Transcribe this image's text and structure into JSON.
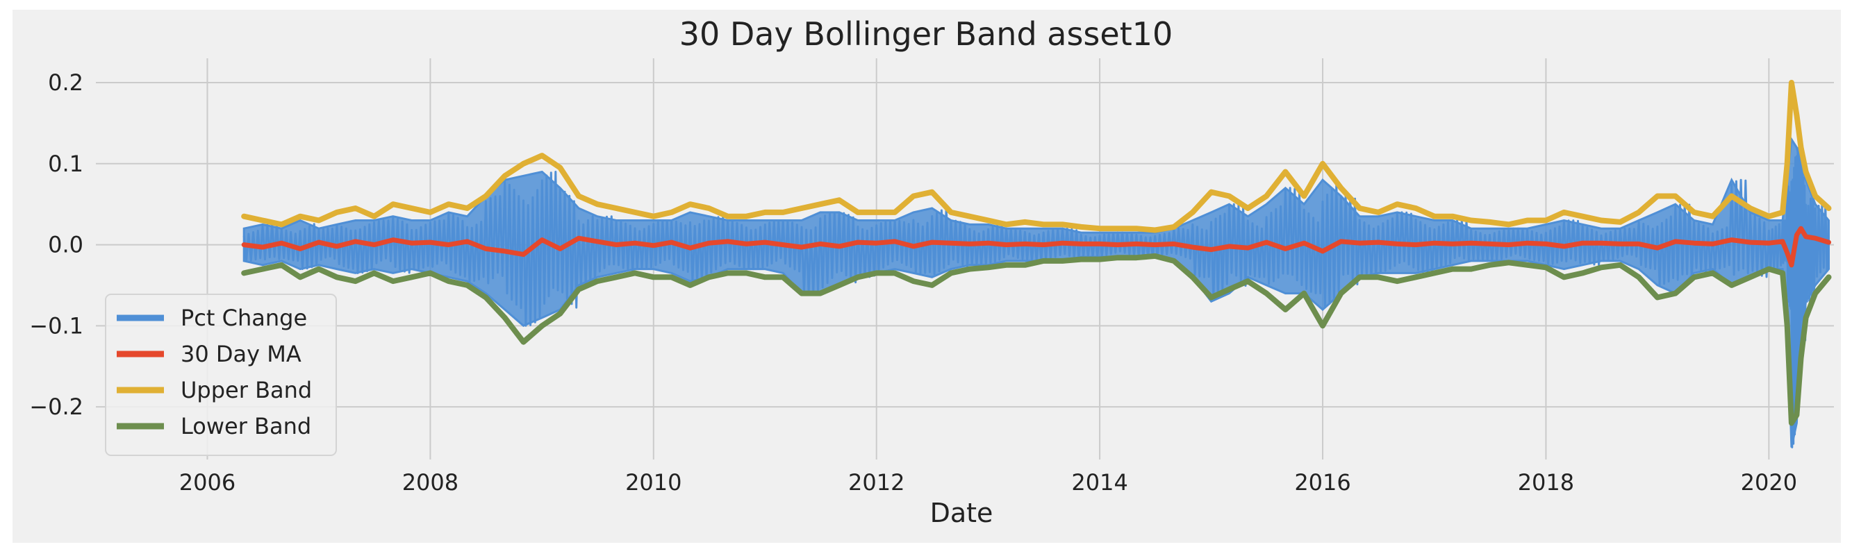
{
  "chart_data": {
    "type": "line",
    "title": "30 Day Bollinger Band asset10",
    "xlabel": "Date",
    "ylabel": "",
    "x_range": [
      "2005-01-01",
      "2020-08-01"
    ],
    "ylim": [
      -0.265,
      0.23
    ],
    "x_ticks": [
      {
        "date": "2006-01-01",
        "label": "2006"
      },
      {
        "date": "2008-01-01",
        "label": "2008"
      },
      {
        "date": "2010-01-01",
        "label": "2010"
      },
      {
        "date": "2012-01-01",
        "label": "2012"
      },
      {
        "date": "2014-01-01",
        "label": "2014"
      },
      {
        "date": "2016-01-01",
        "label": "2016"
      },
      {
        "date": "2018-01-01",
        "label": "2018"
      },
      {
        "date": "2020-01-01",
        "label": "2020"
      }
    ],
    "y_ticks": [
      {
        "value": 0.2,
        "label": "0.2"
      },
      {
        "value": 0.1,
        "label": "0.1"
      },
      {
        "value": 0.0,
        "label": "0.0"
      },
      {
        "value": -0.1,
        "label": "−0.1"
      },
      {
        "value": -0.2,
        "label": "−0.2"
      }
    ],
    "grid": true,
    "legend_position": "lower-left",
    "colors": {
      "background": "#f0f0f0",
      "grid": "#cbcbcb",
      "text": "#222222"
    },
    "series": [
      {
        "name": "Pct Change",
        "color": "#4f8fd6",
        "line_width": 7,
        "x": [
          "2006-05-01",
          "2006-07-01",
          "2006-09-01",
          "2006-11-01",
          "2007-01-01",
          "2007-03-01",
          "2007-05-01",
          "2007-07-01",
          "2007-09-01",
          "2007-11-01",
          "2008-01-01",
          "2008-03-01",
          "2008-05-01",
          "2008-07-01",
          "2008-09-01",
          "2008-11-01",
          "2009-01-01",
          "2009-03-01",
          "2009-05-01",
          "2009-07-01",
          "2009-09-01",
          "2009-11-01",
          "2010-01-01",
          "2010-03-01",
          "2010-05-01",
          "2010-07-01",
          "2010-09-01",
          "2010-11-01",
          "2011-01-01",
          "2011-03-01",
          "2011-05-01",
          "2011-07-01",
          "2011-09-01",
          "2011-11-01",
          "2012-01-01",
          "2012-03-01",
          "2012-05-01",
          "2012-07-01",
          "2012-09-01",
          "2012-11-01",
          "2013-01-01",
          "2013-03-01",
          "2013-05-01",
          "2013-07-01",
          "2013-09-01",
          "2013-11-01",
          "2014-01-01",
          "2014-03-01",
          "2014-05-01",
          "2014-07-01",
          "2014-09-01",
          "2014-11-01",
          "2015-01-01",
          "2015-03-01",
          "2015-05-01",
          "2015-07-01",
          "2015-09-01",
          "2015-11-01",
          "2016-01-01",
          "2016-03-01",
          "2016-05-01",
          "2016-07-01",
          "2016-09-01",
          "2016-11-01",
          "2017-01-01",
          "2017-03-01",
          "2017-05-01",
          "2017-07-01",
          "2017-09-01",
          "2017-11-01",
          "2018-01-01",
          "2018-03-01",
          "2018-05-01",
          "2018-07-01",
          "2018-09-01",
          "2018-11-01",
          "2019-01-01",
          "2019-03-01",
          "2019-05-01",
          "2019-07-01",
          "2019-09-01",
          "2019-11-01",
          "2020-01-01",
          "2020-02-15",
          "2020-03-01",
          "2020-03-15",
          "2020-04-01",
          "2020-04-15",
          "2020-05-01",
          "2020-06-01",
          "2020-07-15"
        ],
        "high": [
          0.02,
          0.025,
          0.02,
          0.03,
          0.02,
          0.025,
          0.03,
          0.03,
          0.035,
          0.03,
          0.03,
          0.04,
          0.035,
          0.06,
          0.08,
          0.085,
          0.09,
          0.07,
          0.045,
          0.035,
          0.03,
          0.03,
          0.03,
          0.03,
          0.04,
          0.035,
          0.03,
          0.03,
          0.03,
          0.03,
          0.03,
          0.04,
          0.04,
          0.03,
          0.03,
          0.03,
          0.04,
          0.045,
          0.03,
          0.025,
          0.025,
          0.02,
          0.02,
          0.02,
          0.02,
          0.015,
          0.015,
          0.015,
          0.015,
          0.015,
          0.02,
          0.03,
          0.04,
          0.05,
          0.035,
          0.05,
          0.07,
          0.05,
          0.08,
          0.06,
          0.035,
          0.035,
          0.04,
          0.035,
          0.03,
          0.03,
          0.02,
          0.02,
          0.02,
          0.02,
          0.025,
          0.03,
          0.025,
          0.02,
          0.02,
          0.03,
          0.04,
          0.05,
          0.03,
          0.025,
          0.08,
          0.04,
          0.03,
          0.03,
          0.08,
          0.13,
          0.12,
          0.1,
          0.08,
          0.05,
          0.03
        ],
        "low": [
          -0.02,
          -0.025,
          -0.02,
          -0.03,
          -0.025,
          -0.03,
          -0.035,
          -0.03,
          -0.035,
          -0.03,
          -0.035,
          -0.04,
          -0.045,
          -0.06,
          -0.08,
          -0.1,
          -0.09,
          -0.08,
          -0.05,
          -0.04,
          -0.035,
          -0.03,
          -0.03,
          -0.035,
          -0.045,
          -0.04,
          -0.03,
          -0.03,
          -0.03,
          -0.035,
          -0.06,
          -0.06,
          -0.05,
          -0.04,
          -0.035,
          -0.03,
          -0.035,
          -0.04,
          -0.03,
          -0.025,
          -0.025,
          -0.02,
          -0.02,
          -0.02,
          -0.02,
          -0.015,
          -0.015,
          -0.015,
          -0.015,
          -0.015,
          -0.02,
          -0.04,
          -0.07,
          -0.06,
          -0.04,
          -0.05,
          -0.06,
          -0.06,
          -0.08,
          -0.06,
          -0.04,
          -0.035,
          -0.035,
          -0.035,
          -0.03,
          -0.025,
          -0.02,
          -0.02,
          -0.02,
          -0.02,
          -0.025,
          -0.03,
          -0.025,
          -0.02,
          -0.02,
          -0.03,
          -0.05,
          -0.06,
          -0.035,
          -0.03,
          -0.05,
          -0.04,
          -0.03,
          -0.03,
          -0.08,
          -0.25,
          -0.22,
          -0.12,
          -0.07,
          -0.05,
          -0.03
        ]
      },
      {
        "name": "30 Day MA",
        "color": "#e5482c",
        "line_width": 7,
        "x": [
          "2006-05-01",
          "2006-07-01",
          "2006-09-01",
          "2006-11-01",
          "2007-01-01",
          "2007-03-01",
          "2007-05-01",
          "2007-07-01",
          "2007-09-01",
          "2007-11-01",
          "2008-01-01",
          "2008-03-01",
          "2008-05-01",
          "2008-07-01",
          "2008-09-01",
          "2008-11-01",
          "2009-01-01",
          "2009-03-01",
          "2009-05-01",
          "2009-07-01",
          "2009-09-01",
          "2009-11-01",
          "2010-01-01",
          "2010-03-01",
          "2010-05-01",
          "2010-07-01",
          "2010-09-01",
          "2010-11-01",
          "2011-01-01",
          "2011-03-01",
          "2011-05-01",
          "2011-07-01",
          "2011-09-01",
          "2011-11-01",
          "2012-01-01",
          "2012-03-01",
          "2012-05-01",
          "2012-07-01",
          "2012-09-01",
          "2012-11-01",
          "2013-01-01",
          "2013-03-01",
          "2013-05-01",
          "2013-07-01",
          "2013-09-01",
          "2013-11-01",
          "2014-01-01",
          "2014-03-01",
          "2014-05-01",
          "2014-07-01",
          "2014-09-01",
          "2014-11-01",
          "2015-01-01",
          "2015-03-01",
          "2015-05-01",
          "2015-07-01",
          "2015-09-01",
          "2015-11-01",
          "2016-01-01",
          "2016-03-01",
          "2016-05-01",
          "2016-07-01",
          "2016-09-01",
          "2016-11-01",
          "2017-01-01",
          "2017-03-01",
          "2017-05-01",
          "2017-07-01",
          "2017-09-01",
          "2017-11-01",
          "2018-01-01",
          "2018-03-01",
          "2018-05-01",
          "2018-07-01",
          "2018-09-01",
          "2018-11-01",
          "2019-01-01",
          "2019-03-01",
          "2019-05-01",
          "2019-07-01",
          "2019-09-01",
          "2019-11-01",
          "2020-01-01",
          "2020-02-15",
          "2020-03-01",
          "2020-03-15",
          "2020-04-01",
          "2020-04-15",
          "2020-05-01",
          "2020-06-01",
          "2020-07-15"
        ],
        "y": [
          0.0,
          -0.003,
          0.002,
          -0.005,
          0.003,
          -0.002,
          0.004,
          0.0,
          0.006,
          0.002,
          0.003,
          0.0,
          0.004,
          -0.005,
          -0.008,
          -0.012,
          0.006,
          -0.005,
          0.008,
          0.004,
          0.0,
          0.002,
          -0.001,
          0.003,
          -0.004,
          0.002,
          0.004,
          0.001,
          0.003,
          0.0,
          -0.003,
          0.001,
          -0.002,
          0.003,
          0.002,
          0.004,
          -0.002,
          0.003,
          0.002,
          0.001,
          0.002,
          0.0,
          0.001,
          0.0,
          0.002,
          0.001,
          0.001,
          0.0,
          0.001,
          0.0,
          0.001,
          -0.003,
          -0.006,
          -0.002,
          -0.004,
          0.003,
          -0.005,
          0.002,
          -0.008,
          0.004,
          0.002,
          0.003,
          0.001,
          0.0,
          0.002,
          0.001,
          0.002,
          0.001,
          0.0,
          0.002,
          0.001,
          -0.002,
          0.002,
          0.002,
          0.001,
          0.001,
          -0.004,
          0.004,
          0.002,
          0.001,
          0.006,
          0.003,
          0.002,
          0.004,
          -0.01,
          -0.025,
          0.012,
          0.02,
          0.01,
          0.008,
          0.003
        ]
      },
      {
        "name": "Upper Band",
        "color": "#e0b034",
        "line_width": 8,
        "x": [
          "2006-05-01",
          "2006-07-01",
          "2006-09-01",
          "2006-11-01",
          "2007-01-01",
          "2007-03-01",
          "2007-05-01",
          "2007-07-01",
          "2007-09-01",
          "2007-11-01",
          "2008-01-01",
          "2008-03-01",
          "2008-05-01",
          "2008-07-01",
          "2008-09-01",
          "2008-11-01",
          "2009-01-01",
          "2009-03-01",
          "2009-05-01",
          "2009-07-01",
          "2009-09-01",
          "2009-11-01",
          "2010-01-01",
          "2010-03-01",
          "2010-05-01",
          "2010-07-01",
          "2010-09-01",
          "2010-11-01",
          "2011-01-01",
          "2011-03-01",
          "2011-05-01",
          "2011-07-01",
          "2011-09-01",
          "2011-11-01",
          "2012-01-01",
          "2012-03-01",
          "2012-05-01",
          "2012-07-01",
          "2012-09-01",
          "2012-11-01",
          "2013-01-01",
          "2013-03-01",
          "2013-05-01",
          "2013-07-01",
          "2013-09-01",
          "2013-11-01",
          "2014-01-01",
          "2014-03-01",
          "2014-05-01",
          "2014-07-01",
          "2014-09-01",
          "2014-11-01",
          "2015-01-01",
          "2015-03-01",
          "2015-05-01",
          "2015-07-01",
          "2015-09-01",
          "2015-11-01",
          "2016-01-01",
          "2016-03-01",
          "2016-05-01",
          "2016-07-01",
          "2016-09-01",
          "2016-11-01",
          "2017-01-01",
          "2017-03-01",
          "2017-05-01",
          "2017-07-01",
          "2017-09-01",
          "2017-11-01",
          "2018-01-01",
          "2018-03-01",
          "2018-05-01",
          "2018-07-01",
          "2018-09-01",
          "2018-11-01",
          "2019-01-01",
          "2019-03-01",
          "2019-05-01",
          "2019-07-01",
          "2019-09-01",
          "2019-11-01",
          "2020-01-01",
          "2020-02-15",
          "2020-03-01",
          "2020-03-15",
          "2020-04-01",
          "2020-04-15",
          "2020-05-01",
          "2020-06-01",
          "2020-07-15"
        ],
        "y": [
          0.035,
          0.03,
          0.025,
          0.035,
          0.03,
          0.04,
          0.045,
          0.035,
          0.05,
          0.045,
          0.04,
          0.05,
          0.045,
          0.06,
          0.085,
          0.1,
          0.11,
          0.095,
          0.06,
          0.05,
          0.045,
          0.04,
          0.035,
          0.04,
          0.05,
          0.045,
          0.035,
          0.035,
          0.04,
          0.04,
          0.045,
          0.05,
          0.055,
          0.04,
          0.04,
          0.04,
          0.06,
          0.065,
          0.04,
          0.035,
          0.03,
          0.025,
          0.028,
          0.025,
          0.025,
          0.022,
          0.02,
          0.02,
          0.02,
          0.018,
          0.022,
          0.04,
          0.065,
          0.06,
          0.045,
          0.06,
          0.09,
          0.06,
          0.1,
          0.07,
          0.045,
          0.04,
          0.05,
          0.045,
          0.035,
          0.035,
          0.03,
          0.028,
          0.025,
          0.03,
          0.03,
          0.04,
          0.035,
          0.03,
          0.028,
          0.04,
          0.06,
          0.06,
          0.04,
          0.035,
          0.06,
          0.045,
          0.035,
          0.04,
          0.1,
          0.2,
          0.16,
          0.12,
          0.09,
          0.06,
          0.045
        ]
      },
      {
        "name": "Lower Band",
        "color": "#6d8e4e",
        "line_width": 8,
        "x": [
          "2006-05-01",
          "2006-07-01",
          "2006-09-01",
          "2006-11-01",
          "2007-01-01",
          "2007-03-01",
          "2007-05-01",
          "2007-07-01",
          "2007-09-01",
          "2007-11-01",
          "2008-01-01",
          "2008-03-01",
          "2008-05-01",
          "2008-07-01",
          "2008-09-01",
          "2008-11-01",
          "2009-01-01",
          "2009-03-01",
          "2009-05-01",
          "2009-07-01",
          "2009-09-01",
          "2009-11-01",
          "2010-01-01",
          "2010-03-01",
          "2010-05-01",
          "2010-07-01",
          "2010-09-01",
          "2010-11-01",
          "2011-01-01",
          "2011-03-01",
          "2011-05-01",
          "2011-07-01",
          "2011-09-01",
          "2011-11-01",
          "2012-01-01",
          "2012-03-01",
          "2012-05-01",
          "2012-07-01",
          "2012-09-01",
          "2012-11-01",
          "2013-01-01",
          "2013-03-01",
          "2013-05-01",
          "2013-07-01",
          "2013-09-01",
          "2013-11-01",
          "2014-01-01",
          "2014-03-01",
          "2014-05-01",
          "2014-07-01",
          "2014-09-01",
          "2014-11-01",
          "2015-01-01",
          "2015-03-01",
          "2015-05-01",
          "2015-07-01",
          "2015-09-01",
          "2015-11-01",
          "2016-01-01",
          "2016-03-01",
          "2016-05-01",
          "2016-07-01",
          "2016-09-01",
          "2016-11-01",
          "2017-01-01",
          "2017-03-01",
          "2017-05-01",
          "2017-07-01",
          "2017-09-01",
          "2017-11-01",
          "2018-01-01",
          "2018-03-01",
          "2018-05-01",
          "2018-07-01",
          "2018-09-01",
          "2018-11-01",
          "2019-01-01",
          "2019-03-01",
          "2019-05-01",
          "2019-07-01",
          "2019-09-01",
          "2019-11-01",
          "2020-01-01",
          "2020-02-15",
          "2020-03-01",
          "2020-03-15",
          "2020-04-01",
          "2020-04-15",
          "2020-05-01",
          "2020-06-01",
          "2020-07-15"
        ],
        "y": [
          -0.035,
          -0.03,
          -0.025,
          -0.04,
          -0.03,
          -0.04,
          -0.045,
          -0.035,
          -0.045,
          -0.04,
          -0.035,
          -0.045,
          -0.05,
          -0.065,
          -0.09,
          -0.12,
          -0.1,
          -0.085,
          -0.055,
          -0.045,
          -0.04,
          -0.035,
          -0.04,
          -0.04,
          -0.05,
          -0.04,
          -0.035,
          -0.035,
          -0.04,
          -0.04,
          -0.06,
          -0.06,
          -0.05,
          -0.04,
          -0.035,
          -0.035,
          -0.045,
          -0.05,
          -0.035,
          -0.03,
          -0.028,
          -0.025,
          -0.025,
          -0.02,
          -0.02,
          -0.018,
          -0.018,
          -0.016,
          -0.016,
          -0.014,
          -0.02,
          -0.04,
          -0.065,
          -0.055,
          -0.045,
          -0.06,
          -0.08,
          -0.06,
          -0.1,
          -0.06,
          -0.04,
          -0.04,
          -0.045,
          -0.04,
          -0.035,
          -0.03,
          -0.03,
          -0.025,
          -0.022,
          -0.025,
          -0.028,
          -0.04,
          -0.035,
          -0.028,
          -0.025,
          -0.04,
          -0.065,
          -0.06,
          -0.04,
          -0.035,
          -0.05,
          -0.04,
          -0.03,
          -0.035,
          -0.1,
          -0.22,
          -0.21,
          -0.14,
          -0.09,
          -0.06,
          -0.04
        ]
      }
    ]
  }
}
